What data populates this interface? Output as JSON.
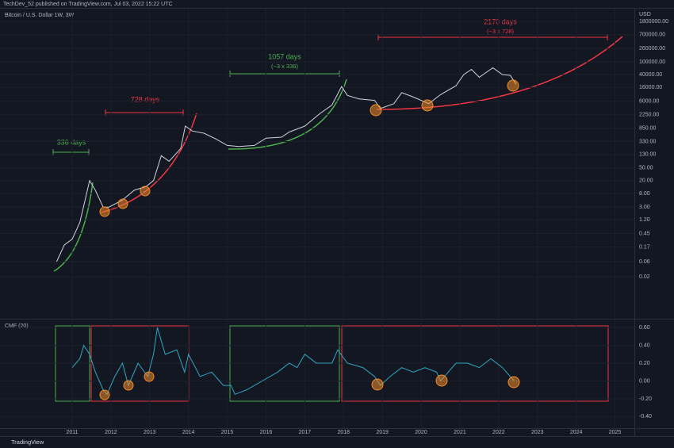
{
  "header": {
    "published": "TechDev_52 published on TradingView.com, Jul 03, 2022 15:22 UTC",
    "symbol": "Bitcoin / U.S. Dollar  1W, 3W",
    "currency": "USD",
    "footer": "TradingView"
  },
  "annotations": {
    "a336": "336 days",
    "a728": "728 days",
    "a1057": "1057 days",
    "a1057_sub": "(~3 x 336)",
    "a2170": "2170 days",
    "a2170_sub": "(~3 x 728)"
  },
  "chart_data": [
    {
      "type": "line",
      "log_scale": true,
      "color": "#d1d4dc",
      "x": [
        2010.6,
        2010.8,
        2011.0,
        2011.2,
        2011.45,
        2011.6,
        2011.8,
        2011.95,
        2012.3,
        2012.6,
        2012.9,
        2013.1,
        2013.3,
        2013.5,
        2013.8,
        2013.92,
        2014.1,
        2014.4,
        2014.7,
        2015.0,
        2015.3,
        2015.7,
        2016.0,
        2016.4,
        2016.6,
        2017.0,
        2017.4,
        2017.7,
        2017.95,
        2018.1,
        2018.4,
        2018.8,
        2018.95,
        2019.3,
        2019.5,
        2019.8,
        2020.2,
        2020.5,
        2020.9,
        2021.1,
        2021.3,
        2021.5,
        2021.85,
        2022.1,
        2022.3,
        2022.45
      ],
      "values": [
        0.06,
        0.2,
        0.3,
        1,
        20,
        10,
        3,
        3,
        5,
        10,
        13,
        20,
        120,
        80,
        200,
        1000,
        700,
        600,
        400,
        250,
        230,
        250,
        420,
        450,
        650,
        1000,
        2500,
        4500,
        17000,
        9000,
        7000,
        6300,
        3500,
        5000,
        11000,
        8000,
        5000,
        9500,
        18000,
        40000,
        58000,
        33000,
        65000,
        40000,
        38000,
        20000
      ],
      "xlim": [
        2009.14,
        2025.5
      ],
      "ylim": [
        0.001,
        4500000
      ],
      "yticks": [
        {
          "value": 1800000,
          "label": "1800000.00"
        },
        {
          "value": 700000,
          "label": "700000.00"
        },
        {
          "value": 260000,
          "label": "260000.00"
        },
        {
          "value": 100000,
          "label": "100000.00"
        },
        {
          "value": 40000,
          "label": "40000.00"
        },
        {
          "value": 16000,
          "label": "16000.00"
        },
        {
          "value": 6000,
          "label": "6000.00"
        },
        {
          "value": 2250,
          "label": "2250.00"
        },
        {
          "value": 850,
          "label": "850.00"
        },
        {
          "value": 330,
          "label": "330.00"
        },
        {
          "value": 130,
          "label": "130.00"
        },
        {
          "value": 50,
          "label": "50.00"
        },
        {
          "value": 20,
          "label": "20.00"
        },
        {
          "value": 8,
          "label": "8.00"
        },
        {
          "value": 3,
          "label": "3.00"
        },
        {
          "value": 1.2,
          "label": "1.20"
        },
        {
          "value": 0.45,
          "label": "0.45"
        },
        {
          "value": 0.17,
          "label": "0.17"
        },
        {
          "value": 0.06,
          "label": "0.06"
        },
        {
          "value": 0.02,
          "label": "0.02"
        }
      ]
    },
    {
      "type": "line",
      "title": "CMF (20)",
      "color": "#2fa8c4",
      "x": [
        2011.0,
        2011.2,
        2011.3,
        2011.45,
        2011.6,
        2011.8,
        2011.9,
        2012.1,
        2012.3,
        2012.45,
        2012.7,
        2012.95,
        2013.1,
        2013.2,
        2013.4,
        2013.7,
        2013.9,
        2014.0,
        2014.3,
        2014.6,
        2014.9,
        2015.1,
        2015.2,
        2015.5,
        2015.9,
        2016.3,
        2016.6,
        2016.8,
        2017.0,
        2017.3,
        2017.7,
        2017.85,
        2018.1,
        2018.5,
        2018.8,
        2018.95,
        2019.2,
        2019.5,
        2019.8,
        2020.1,
        2020.4,
        2020.5,
        2020.7,
        2020.9,
        2021.2,
        2021.5,
        2021.8,
        2022.1,
        2022.3,
        2022.4
      ],
      "values": [
        0.15,
        0.25,
        0.4,
        0.3,
        0.1,
        -0.1,
        -0.15,
        0.05,
        0.2,
        -0.05,
        0.2,
        0.05,
        0.3,
        0.6,
        0.3,
        0.35,
        0.1,
        0.3,
        0.05,
        0.1,
        -0.05,
        -0.05,
        -0.15,
        -0.1,
        0.0,
        0.1,
        0.2,
        0.15,
        0.3,
        0.2,
        0.2,
        0.35,
        0.2,
        0.15,
        0.05,
        -0.05,
        0.05,
        0.15,
        0.1,
        0.15,
        0.1,
        0.0,
        0.1,
        0.2,
        0.2,
        0.15,
        0.25,
        0.15,
        0.05,
        0.0
      ],
      "xlim": [
        2009.14,
        2025.5
      ],
      "ylim": [
        -0.53,
        0.69
      ],
      "yticks": [
        {
          "value": 0.6,
          "label": "0.60"
        },
        {
          "value": 0.4,
          "label": "0.40"
        },
        {
          "value": 0.2,
          "label": "0.20"
        },
        {
          "value": 0,
          "label": "0.00"
        },
        {
          "value": -0.2,
          "label": "-0.20"
        },
        {
          "value": -0.4,
          "label": "-0.40"
        }
      ],
      "xticks": [
        2011,
        2012,
        2013,
        2014,
        2015,
        2016,
        2017,
        2018,
        2019,
        2020,
        2021,
        2022,
        2023,
        2024,
        2025
      ]
    }
  ]
}
